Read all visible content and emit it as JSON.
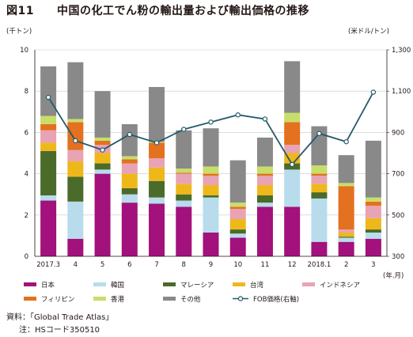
{
  "title": {
    "number": "図11",
    "text": "中国の化工でん粉の輸出量および輸出価格の推移"
  },
  "left_unit": "(千トン)",
  "right_unit": "(米ドル/トン)",
  "period_unit": "(年.月)",
  "notes": {
    "source": "資料：「Global Trade Atlas」",
    "note": "注：HSコード350510"
  },
  "chart_data": {
    "type": "bar",
    "stacked": true,
    "categories": [
      "2017.3",
      "4",
      "5",
      "6",
      "7",
      "8",
      "9",
      "10",
      "11",
      "12",
      "2018.1",
      "2",
      "3"
    ],
    "ylim": [
      0,
      10
    ],
    "yticks": [
      0,
      2,
      4,
      6,
      8,
      10
    ],
    "y2lim": [
      300,
      1300
    ],
    "y2ticks": [
      300,
      500,
      700,
      900,
      1100,
      1300
    ],
    "y2tick_labels": [
      "300",
      "500",
      "700",
      "900",
      "1,100",
      "1,300"
    ],
    "grid": true,
    "legend_position": "bottom",
    "series": [
      {
        "name": "日本",
        "color": "#a2117c",
        "values": [
          2.7,
          0.85,
          4.0,
          2.6,
          2.55,
          2.4,
          1.15,
          0.9,
          2.4,
          2.4,
          0.7,
          0.7,
          0.85
        ]
      },
      {
        "name": "韓国",
        "color": "#b8dcec",
        "values": [
          0.25,
          1.8,
          0.2,
          0.4,
          0.3,
          0.3,
          1.7,
          0.2,
          0.2,
          1.8,
          2.1,
          0.2,
          0.3
        ]
      },
      {
        "name": "マレーシア",
        "color": "#4a6b2a",
        "values": [
          2.15,
          1.2,
          0.3,
          0.3,
          0.8,
          0.3,
          0.1,
          0.2,
          0.35,
          0.3,
          0.3,
          0.05,
          0.15
        ]
      },
      {
        "name": "台湾",
        "color": "#efb81a",
        "values": [
          0.4,
          0.75,
          0.5,
          0.7,
          0.65,
          0.5,
          0.5,
          0.5,
          0.5,
          0.5,
          0.4,
          0.2,
          0.55
        ]
      },
      {
        "name": "インドネシア",
        "color": "#e8a3b4",
        "values": [
          0.6,
          0.55,
          0.4,
          0.5,
          0.45,
          0.5,
          0.45,
          0.5,
          0.45,
          0.4,
          0.4,
          0.15,
          0.6
        ]
      },
      {
        "name": "フィリピン",
        "color": "#e3711f",
        "values": [
          0.3,
          1.35,
          0.2,
          0.2,
          0.75,
          0.05,
          0.1,
          0.1,
          0.1,
          1.1,
          0.1,
          2.1,
          0.2
        ]
      },
      {
        "name": "香港",
        "color": "#c8de69",
        "values": [
          0.4,
          0.15,
          0.15,
          0.15,
          0.05,
          0.2,
          0.35,
          0.2,
          0.35,
          0.45,
          0.4,
          0.15,
          0.2
        ]
      },
      {
        "name": "その他",
        "color": "#898989",
        "values": [
          2.4,
          2.75,
          2.25,
          1.55,
          2.65,
          1.85,
          1.85,
          2.05,
          1.4,
          2.5,
          1.9,
          1.35,
          2.75
        ]
      }
    ],
    "line_series": {
      "name": "FOB価格(右軸)",
      "axis": "right",
      "color": "#245a6b",
      "values": [
        1070,
        860,
        815,
        890,
        850,
        915,
        950,
        985,
        965,
        745,
        895,
        855,
        1095
      ]
    }
  }
}
